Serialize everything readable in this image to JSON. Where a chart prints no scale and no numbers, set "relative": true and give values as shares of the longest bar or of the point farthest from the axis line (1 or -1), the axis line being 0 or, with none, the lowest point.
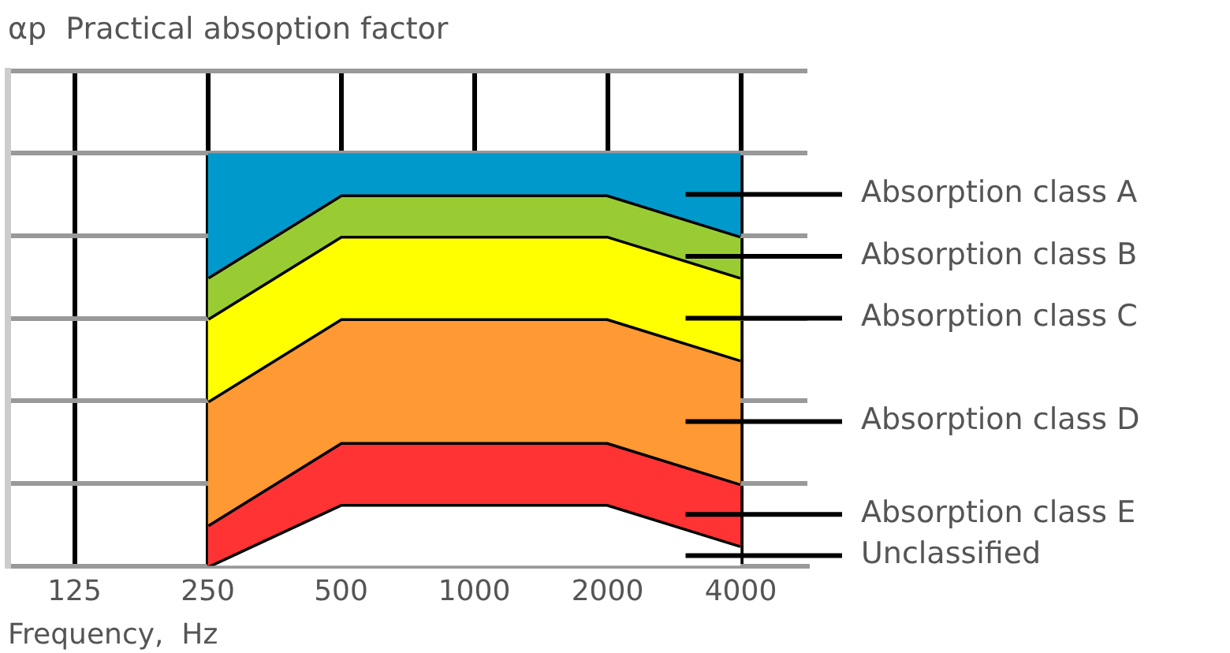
{
  "chart_data": {
    "type": "area",
    "title": "αp  Practical absoption factor",
    "xlabel": "Frequency,  Hz",
    "categories": [
      "125",
      "250",
      "500",
      "1000",
      "2000",
      "4000"
    ],
    "relative": true,
    "grid": true,
    "legend": "right",
    "line_style": "solid",
    "marker": "none",
    "series": [
      {
        "name": "Absorption class A",
        "color": "#0099cc",
        "values": [
          null,
          1.0,
          1.0,
          1.0,
          1.0,
          1.0
        ]
      },
      {
        "name": "Absorption class B",
        "color": "#99cc33",
        "values": [
          null,
          0.7,
          0.9,
          0.9,
          0.9,
          0.8
        ]
      },
      {
        "name": "Absorption class C",
        "color": "#ffff00",
        "values": [
          null,
          0.6,
          0.8,
          0.8,
          0.8,
          0.7
        ]
      },
      {
        "name": "Absorption class D",
        "color": "#ff9933",
        "values": [
          null,
          0.4,
          0.6,
          0.6,
          0.6,
          0.5
        ]
      },
      {
        "name": "Absorption class E",
        "color": "#ff3333",
        "values": [
          null,
          0.1,
          0.3,
          0.3,
          0.3,
          0.2
        ]
      },
      {
        "name": "Unclassified",
        "color": "#ffffff",
        "values": [
          null,
          0,
          0.15,
          0.15,
          0.15,
          0.05
        ]
      }
    ]
  }
}
